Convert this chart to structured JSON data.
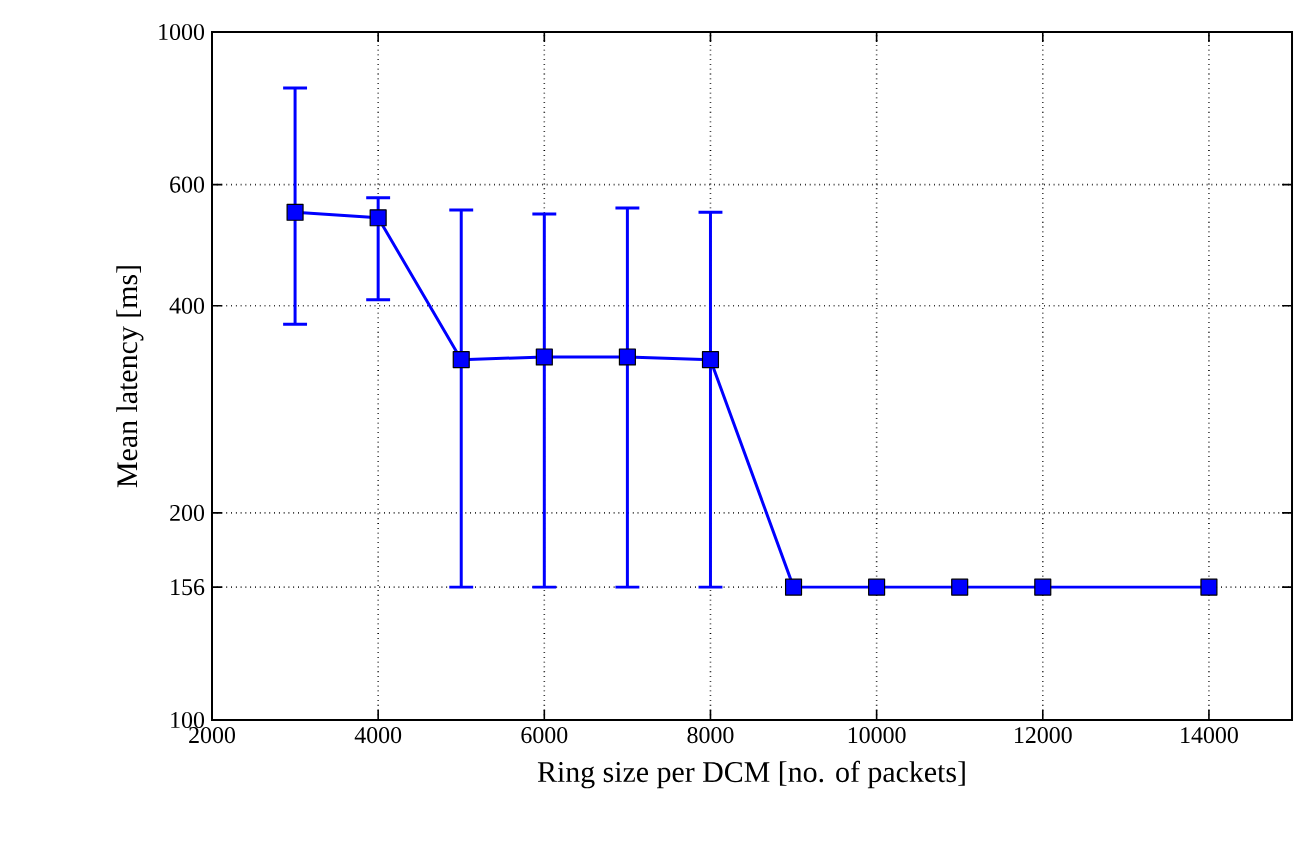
{
  "chart_data": {
    "type": "line",
    "xlabel": "Ring size per DCM [no. of packets]",
    "ylabel": "Mean latency [ms]",
    "x": [
      3000,
      4000,
      5000,
      6000,
      7000,
      8000,
      9000,
      10000,
      11000,
      12000,
      14000
    ],
    "series": [
      {
        "color": "#0000ff",
        "values": [
          547,
          537,
          334,
          337,
          337,
          334,
          156,
          156,
          156,
          156,
          156
        ],
        "errors": [
          [
            376,
            829
          ],
          [
            408,
            574
          ],
          [
            156,
            551
          ],
          [
            156,
            544
          ],
          [
            156,
            555
          ],
          [
            156,
            547
          ],
          null,
          null,
          null,
          null,
          null
        ]
      }
    ],
    "xlim": [
      2000,
      15000
    ],
    "xticks": [
      2000,
      4000,
      6000,
      8000,
      10000,
      12000,
      14000
    ],
    "ylim": [
      100,
      1000
    ],
    "yticks": [
      100,
      156,
      200,
      400,
      600,
      1000
    ],
    "log": "y",
    "grid": true,
    "marker": "square",
    "line_style": "solid"
  }
}
